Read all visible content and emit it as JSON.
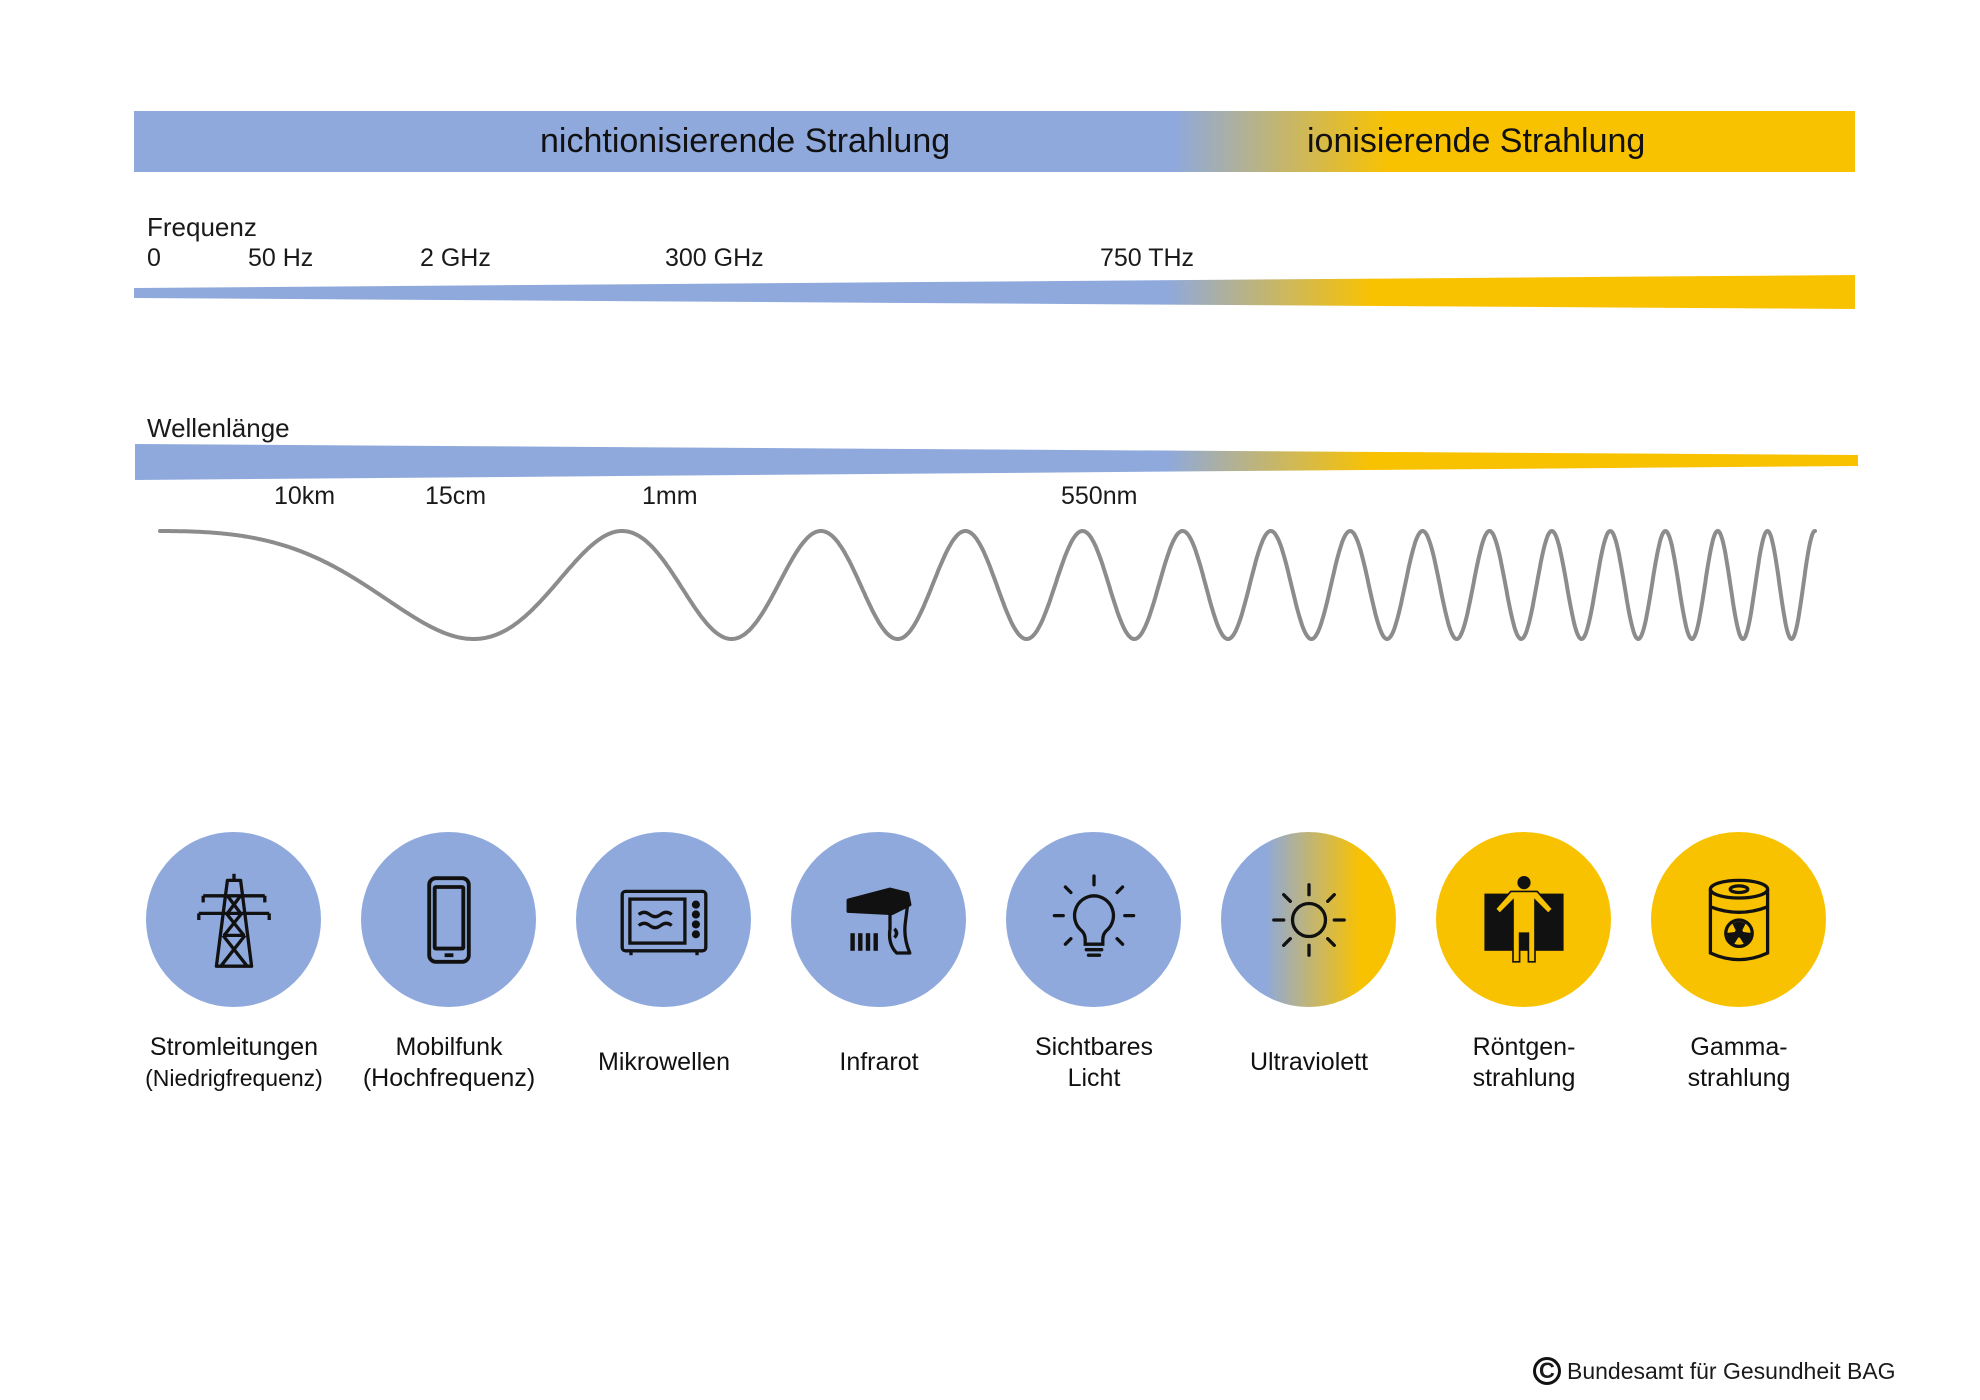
{
  "header": {
    "nonionizing_label": "nichtionisierende Strahlung",
    "ionizing_label": "ionisierende Strahlung"
  },
  "frequency": {
    "title": "Frequenz",
    "ticks": [
      "0",
      "50 Hz",
      "2 GHz",
      "300 GHz",
      "750 THz"
    ]
  },
  "wavelength": {
    "title": "Wellenlänge",
    "ticks": [
      "10km",
      "15cm",
      "1mm",
      "550nm"
    ]
  },
  "categories": [
    {
      "line1": "Stromleitungen",
      "line2": "(Niedrigfrequenz)",
      "icon": "power-pylon-icon",
      "color": "#8fa9dc"
    },
    {
      "line1": "Mobilfunk",
      "line2": "(Hochfrequenz)",
      "icon": "mobile-phone-icon",
      "color": "#8fa9dc"
    },
    {
      "line1": "Mikrowellen",
      "line2": "",
      "icon": "microwave-icon",
      "color": "#8fa9dc"
    },
    {
      "line1": "Infrarot",
      "line2": "",
      "icon": "infrared-heater-icon",
      "color": "#8fa9dc"
    },
    {
      "line1": "Sichtbares",
      "line2": "Licht",
      "icon": "light-bulb-icon",
      "color": "#8fa9dc"
    },
    {
      "line1": "Ultraviolett",
      "line2": "",
      "icon": "sun-icon",
      "color": "gradient"
    },
    {
      "line1": "Röntgen-",
      "line2": "strahlung",
      "icon": "xray-person-icon",
      "color": "#f9c200"
    },
    {
      "line1": "Gamma-",
      "line2": "strahlung",
      "icon": "radioactive-barrel-icon",
      "color": "#f9c200"
    }
  ],
  "colors": {
    "nonionizing": "#8fa9dc",
    "ionizing": "#f9c200",
    "wave": "#8c8c8c"
  },
  "footer": {
    "copyright": "Bundesamt für Gesundheit BAG"
  }
}
